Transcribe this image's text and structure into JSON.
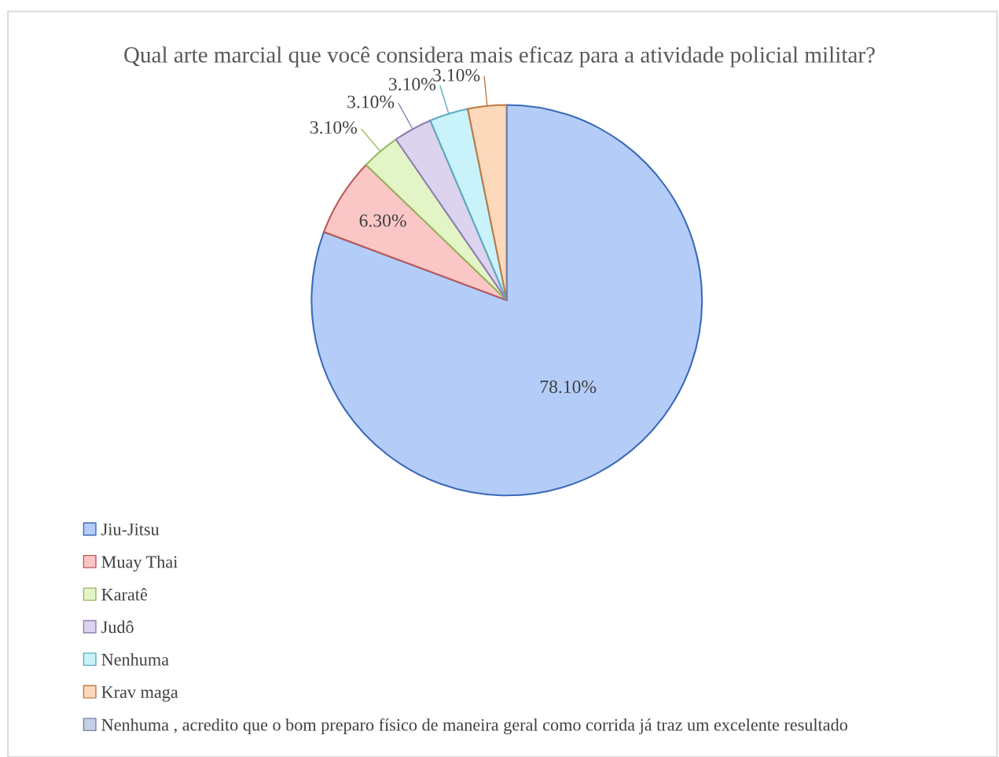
{
  "chart_data": {
    "type": "pie",
    "title": "Qual arte marcial que você considera mais eficaz para a atividade policial militar?",
    "categories": [
      "Jiu-Jitsu",
      "Muay Thai",
      "Karatê",
      "Judô",
      "Nenhuma",
      "Krav maga",
      "Nenhuma , acredito que o bom preparo físico de maneira geral como corrida já traz um excelente resultado"
    ],
    "values": [
      78.1,
      6.3,
      3.1,
      3.1,
      3.1,
      3.1,
      0
    ],
    "value_labels": [
      "78.10%",
      "6.30%",
      "3.10%",
      "3.10%",
      "3.10%",
      "3.10%",
      null
    ],
    "colors": [
      "#b4cdf8",
      "#fbc6c6",
      "#e3f5c6",
      "#dcd3ef",
      "#c9f2fb",
      "#fdd9bc",
      "#c6d0e4"
    ],
    "legend": "bottom"
  }
}
